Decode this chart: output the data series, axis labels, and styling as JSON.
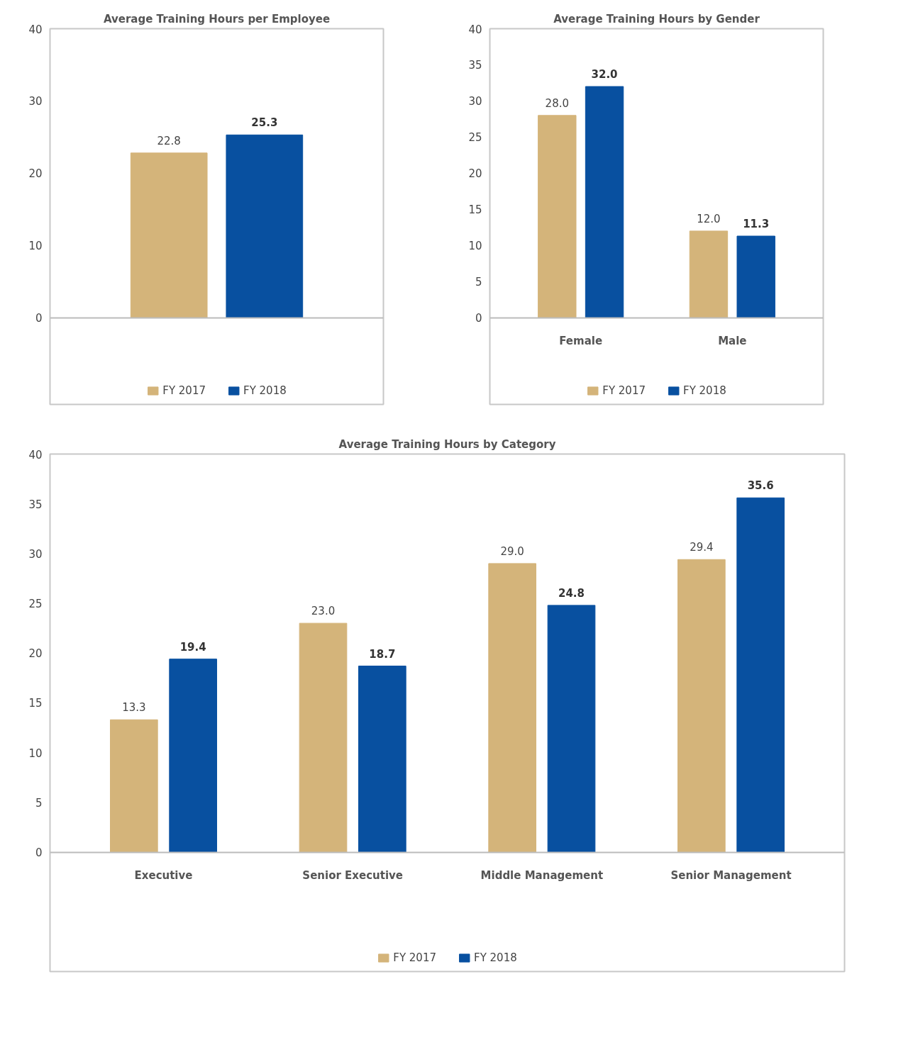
{
  "chart_data": [
    {
      "type": "bar",
      "title": "Average Training Hours per Employee",
      "categories": [
        null
      ],
      "series": [
        {
          "name": "FY 2017",
          "color": "#d4b47a",
          "values": [
            22.8
          ],
          "value_labels": [
            "22.8"
          ]
        },
        {
          "name": "FY 2018",
          "color": "#0850a0",
          "values": [
            25.3
          ],
          "value_labels": [
            "25.3"
          ]
        }
      ],
      "ylim": [
        0,
        40
      ],
      "yticks": [
        0,
        10,
        20,
        30,
        40
      ],
      "grid": false,
      "legend": "bottom",
      "tick_labels": "y"
    },
    {
      "type": "bar",
      "title": "Average Training Hours by Gender",
      "categories": [
        "Female",
        "Male"
      ],
      "series": [
        {
          "name": "FY 2017",
          "color": "#d4b47a",
          "values": [
            28.0,
            12.0
          ],
          "value_labels": [
            "28.0",
            "12.0"
          ]
        },
        {
          "name": "FY 2018",
          "color": "#0850a0",
          "values": [
            32.0,
            11.3
          ],
          "value_labels": [
            "32.0",
            "11.3"
          ]
        }
      ],
      "ylim": [
        0,
        40
      ],
      "yticks": [
        0,
        5,
        10,
        15,
        20,
        25,
        30,
        35,
        40
      ],
      "grid": false,
      "legend": "bottom"
    },
    {
      "type": "bar",
      "title": "Average Training Hours by Category",
      "categories": [
        "Executive",
        "Senior Executive",
        "Middle Management",
        "Senior Management"
      ],
      "series": [
        {
          "name": "FY 2017",
          "color": "#d4b47a",
          "values": [
            13.3,
            23.0,
            29.0,
            29.4
          ],
          "value_labels": [
            "13.3",
            "23.0",
            "29.0",
            "29.4"
          ]
        },
        {
          "name": "FY 2018",
          "color": "#0850a0",
          "values": [
            19.4,
            18.7,
            24.8,
            35.6
          ],
          "value_labels": [
            "19.4",
            "18.7",
            "24.8",
            "35.6"
          ]
        }
      ],
      "ylim": [
        0,
        40
      ],
      "yticks": [
        0,
        5,
        10,
        15,
        20,
        25,
        30,
        35,
        40
      ],
      "grid": false,
      "legend": "bottom"
    }
  ]
}
